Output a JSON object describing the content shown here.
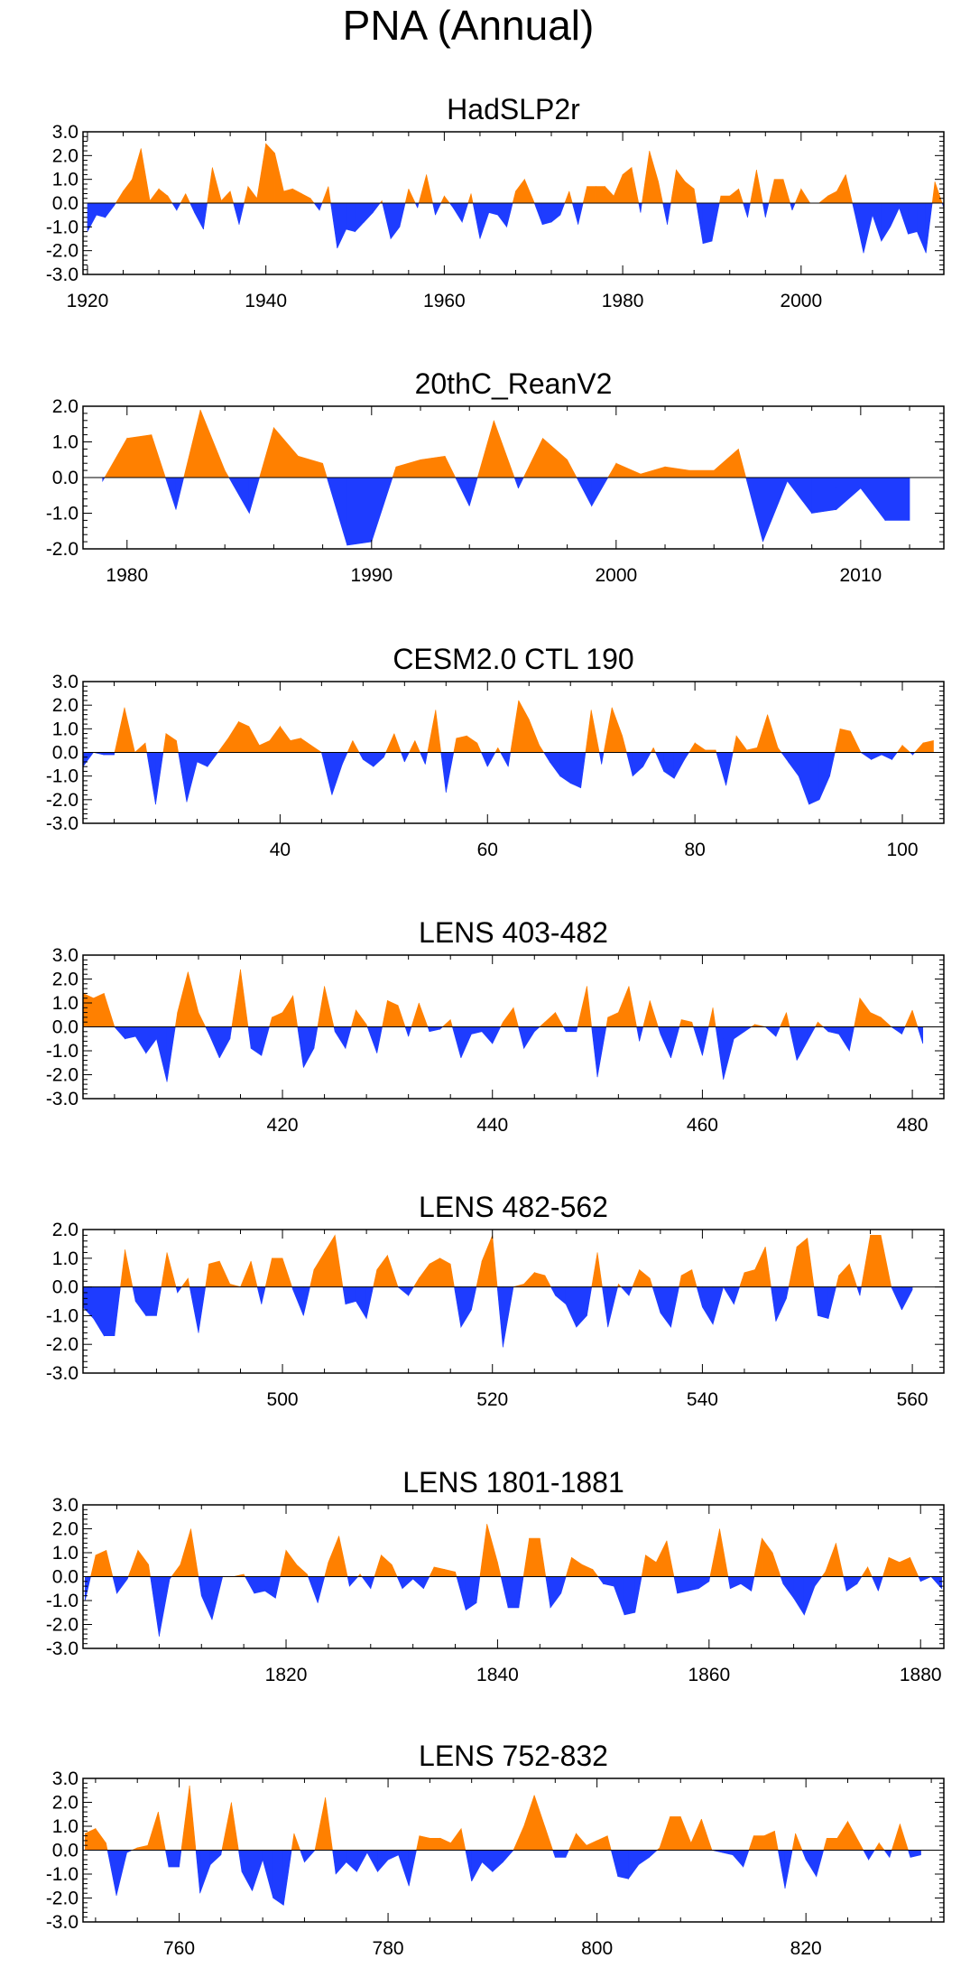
{
  "figure": {
    "title": "PNA (Annual)"
  },
  "colors": {
    "positive": "#ff8000",
    "negative": "#1e3cff",
    "axis": "#000000",
    "zero_line": "#000000"
  },
  "chart_data": [
    {
      "type": "area",
      "title": "HadSLP2r",
      "xlim": [
        1919.5,
        2016
      ],
      "ylim": [
        -3.0,
        3.0
      ],
      "yticks": [
        3.0,
        2.0,
        1.0,
        0.0,
        -1.0,
        -2.0,
        -3.0
      ],
      "ytick_labels": [
        "3.0",
        "2.0",
        "1.0",
        "0.0",
        "-1.0",
        "-2.0",
        "-3.0"
      ],
      "xticks": [
        1920,
        1940,
        1960,
        1980,
        2000
      ],
      "x_start": 1920,
      "values": [
        -1.2,
        -0.5,
        -0.6,
        -0.1,
        0.5,
        1.0,
        2.3,
        0.1,
        0.6,
        0.3,
        -0.3,
        0.4,
        -0.4,
        -1.1,
        1.5,
        0.1,
        0.5,
        -0.9,
        0.7,
        0.2,
        2.5,
        2.1,
        0.5,
        0.6,
        0.4,
        0.2,
        -0.3,
        0.7,
        -1.9,
        -1.1,
        -1.2,
        -0.8,
        -0.4,
        0.1,
        -1.5,
        -1.0,
        0.6,
        -0.2,
        1.2,
        -0.5,
        0.3,
        -0.2,
        -0.8,
        0.4,
        -1.5,
        -0.4,
        -0.5,
        -1.0,
        0.5,
        1.0,
        0.1,
        -0.9,
        -0.8,
        -0.5,
        0.5,
        -0.9,
        0.7,
        0.7,
        0.7,
        0.3,
        1.2,
        1.5,
        -0.4,
        2.2,
        0.9,
        -0.9,
        1.4,
        0.9,
        0.6,
        -1.7,
        -1.6,
        0.3,
        0.3,
        0.6,
        -0.6,
        1.4,
        -0.6,
        1.0,
        1.0,
        -0.3,
        0.6,
        0.0,
        0.0,
        0.3,
        0.5,
        1.2,
        -0.4,
        -2.1,
        -0.5,
        -1.6,
        -1.0,
        -0.2,
        -1.3,
        -1.2,
        -2.1,
        0.9,
        -0.2
      ]
    },
    {
      "type": "area",
      "title": "20thC_ReanV2",
      "xlim": [
        1978.2,
        2013.4
      ],
      "ylim": [
        -2.0,
        2.0
      ],
      "yticks": [
        2.0,
        1.0,
        0.0,
        -1.0,
        -2.0
      ],
      "ytick_labels": [
        "2.0",
        "1.0",
        "0.0",
        "-1.0",
        "-2.0"
      ],
      "xticks": [
        1980,
        1990,
        2000,
        2010
      ],
      "x_start": 1979,
      "values": [
        -0.1,
        1.1,
        1.2,
        -0.9,
        1.9,
        0.2,
        -1.0,
        1.4,
        0.6,
        0.4,
        -1.9,
        -1.8,
        0.3,
        0.5,
        0.6,
        -0.8,
        1.6,
        -0.3,
        1.1,
        0.5,
        -0.8,
        0.4,
        0.1,
        0.3,
        0.2,
        0.2,
        0.8,
        -1.8,
        -0.1,
        -1.0,
        -0.9,
        -0.3,
        -1.2,
        -1.2
      ]
    },
    {
      "type": "area",
      "title": "CESM2.0 CTL 190",
      "xlim": [
        21,
        104
      ],
      "ylim": [
        -3.0,
        3.0
      ],
      "yticks": [
        3.0,
        2.0,
        1.0,
        0.0,
        -1.0,
        -2.0,
        -3.0
      ],
      "ytick_labels": [
        "3.0",
        "2.0",
        "1.0",
        "0.0",
        "-1.0",
        "-2.0",
        "-3.0"
      ],
      "xticks": [
        40,
        60,
        80,
        100
      ],
      "x_start": 21,
      "values": [
        -0.6,
        0.0,
        -0.1,
        -0.1,
        1.9,
        0.0,
        0.4,
        -2.2,
        0.8,
        0.5,
        -2.1,
        -0.4,
        -0.6,
        0.0,
        0.6,
        1.3,
        1.1,
        0.3,
        0.5,
        1.1,
        0.5,
        0.6,
        0.3,
        0.0,
        -1.8,
        -0.5,
        0.5,
        -0.3,
        -0.6,
        -0.2,
        0.8,
        -0.4,
        0.5,
        -0.5,
        1.8,
        -1.7,
        0.6,
        0.7,
        0.4,
        -0.6,
        0.2,
        -0.6,
        2.2,
        1.4,
        0.3,
        -0.4,
        -1.0,
        -1.3,
        -1.5,
        1.8,
        -0.5,
        1.9,
        0.7,
        -1.0,
        -0.6,
        0.2,
        -0.8,
        -1.1,
        -0.3,
        0.4,
        0.1,
        0.1,
        -1.4,
        0.7,
        0.1,
        0.2,
        1.6,
        0.2,
        -0.4,
        -1.0,
        -2.2,
        -2.0,
        -1.0,
        1.0,
        0.9,
        0.0,
        -0.3,
        -0.1,
        -0.3,
        0.3,
        -0.1,
        0.4,
        0.5
      ]
    },
    {
      "type": "area",
      "title": "LENS 403-482",
      "xlim": [
        401,
        483
      ],
      "ylim": [
        -3.0,
        3.0
      ],
      "yticks": [
        3.0,
        2.0,
        1.0,
        0.0,
        -1.0,
        -2.0,
        -3.0
      ],
      "ytick_labels": [
        "3.0",
        "2.0",
        "1.0",
        "0.0",
        "-1.0",
        "-2.0",
        "-3.0"
      ],
      "xticks": [
        420,
        440,
        460,
        480
      ],
      "x_start": 401,
      "values": [
        1.4,
        1.2,
        1.4,
        0.0,
        -0.5,
        -0.4,
        -1.1,
        -0.5,
        -2.3,
        0.6,
        2.3,
        0.6,
        -0.3,
        -1.3,
        -0.5,
        2.4,
        -0.9,
        -1.2,
        0.4,
        0.6,
        1.3,
        -1.7,
        -0.9,
        1.7,
        -0.2,
        -0.9,
        0.7,
        0.1,
        -1.1,
        1.1,
        0.9,
        -0.4,
        1.0,
        -0.2,
        -0.1,
        0.3,
        -1.3,
        -0.3,
        -0.2,
        -0.7,
        0.2,
        0.8,
        -0.9,
        -0.2,
        0.2,
        0.6,
        -0.2,
        -0.2,
        1.7,
        -2.1,
        0.4,
        0.6,
        1.7,
        -0.6,
        1.1,
        -0.3,
        -1.3,
        0.3,
        0.2,
        -1.2,
        0.8,
        -2.2,
        -0.5,
        -0.2,
        0.1,
        0.0,
        -0.4,
        0.6,
        -1.4,
        -0.6,
        0.2,
        -0.2,
        -0.3,
        -1.0,
        1.2,
        0.6,
        0.4,
        0.0,
        -0.3,
        0.7,
        -0.7
      ]
    },
    {
      "type": "area",
      "title": "LENS 482-562",
      "xlim": [
        481,
        563
      ],
      "ylim": [
        -3.0,
        2.0
      ],
      "yticks": [
        2.0,
        1.0,
        0.0,
        -1.0,
        -2.0,
        -3.0
      ],
      "ytick_labels": [
        "2.0",
        "1.0",
        "0.0",
        "-1.0",
        "-2.0",
        "-3.0"
      ],
      "xticks": [
        500,
        520,
        540,
        560
      ],
      "x_start": 481,
      "values": [
        -0.7,
        -1.1,
        -1.7,
        -1.7,
        1.3,
        -0.5,
        -1.0,
        -1.0,
        1.2,
        -0.2,
        0.3,
        -1.6,
        0.8,
        0.9,
        0.1,
        0.0,
        0.9,
        -0.6,
        1.0,
        1.0,
        -0.1,
        -1.0,
        0.6,
        1.2,
        1.8,
        -0.6,
        -0.5,
        -1.1,
        0.6,
        1.1,
        0.0,
        -0.3,
        0.3,
        0.8,
        1.0,
        0.8,
        -1.4,
        -0.8,
        0.9,
        1.8,
        -2.1,
        0.0,
        0.1,
        0.5,
        0.4,
        -0.3,
        -0.6,
        -1.4,
        -1.0,
        1.2,
        -1.4,
        0.1,
        -0.3,
        0.6,
        0.3,
        -0.9,
        -1.4,
        0.4,
        0.6,
        -0.7,
        -1.3,
        0.0,
        -0.6,
        0.5,
        0.6,
        1.4,
        -1.2,
        -0.4,
        1.4,
        1.7,
        -1.0,
        -1.1,
        0.4,
        0.8,
        -0.3,
        1.8,
        1.8,
        0.0,
        -0.8,
        -0.1
      ]
    },
    {
      "type": "area",
      "title": "LENS 1801-1881",
      "xlim": [
        1800.8,
        1882.2
      ],
      "ylim": [
        -3.0,
        3.0
      ],
      "yticks": [
        3.0,
        2.0,
        1.0,
        0.0,
        -1.0,
        -2.0,
        -3.0
      ],
      "ytick_labels": [
        "3.0",
        "2.0",
        "1.0",
        "0.0",
        "-1.0",
        "-2.0",
        "-3.0"
      ],
      "xticks": [
        1820,
        1840,
        1860,
        1880
      ],
      "x_start": 1801,
      "values": [
        -1.0,
        0.9,
        1.1,
        -0.7,
        -0.1,
        1.1,
        0.5,
        -2.5,
        -0.1,
        0.5,
        2.0,
        -0.8,
        -1.8,
        0.0,
        0.0,
        0.1,
        -0.7,
        -0.6,
        -0.9,
        1.1,
        0.5,
        0.1,
        -1.1,
        0.6,
        1.7,
        -0.4,
        0.1,
        -0.5,
        0.9,
        0.5,
        -0.5,
        -0.1,
        -0.5,
        0.4,
        0.3,
        0.2,
        -1.4,
        -1.1,
        2.2,
        0.6,
        -1.3,
        -1.3,
        1.6,
        1.6,
        -1.3,
        -0.7,
        0.8,
        0.5,
        0.3,
        -0.3,
        -0.4,
        -1.6,
        -1.5,
        0.9,
        0.6,
        1.5,
        -0.7,
        -0.6,
        -0.5,
        -0.2,
        2.0,
        -0.5,
        -0.3,
        -0.6,
        1.6,
        1.0,
        -0.3,
        -0.9,
        -1.6,
        -0.4,
        0.2,
        1.4,
        -0.6,
        -0.3,
        0.4,
        -0.6,
        0.8,
        0.6,
        0.8,
        -0.2,
        0.0,
        -0.5
      ]
    },
    {
      "type": "area",
      "title": "LENS 752-832",
      "xlim": [
        750.8,
        833.2
      ],
      "ylim": [
        -3.0,
        3.0
      ],
      "yticks": [
        3.0,
        2.0,
        1.0,
        0.0,
        -1.0,
        -2.0,
        -3.0
      ],
      "ytick_labels": [
        "3.0",
        "2.0",
        "1.0",
        "0.0",
        "-1.0",
        "-2.0",
        "-3.0"
      ],
      "xticks": [
        760,
        780,
        800,
        820
      ],
      "x_start": 751,
      "values": [
        0.7,
        0.9,
        0.3,
        -1.9,
        -0.1,
        0.1,
        0.2,
        1.6,
        -0.7,
        -0.7,
        2.7,
        -1.8,
        -0.6,
        -0.2,
        2.0,
        -0.9,
        -1.7,
        -0.4,
        -2.0,
        -2.3,
        0.7,
        -0.5,
        0.0,
        2.2,
        -1.0,
        -0.5,
        -0.9,
        -0.1,
        -0.9,
        -0.4,
        -0.2,
        -1.5,
        0.6,
        0.5,
        0.5,
        0.3,
        0.9,
        -1.3,
        -0.5,
        -0.9,
        -0.5,
        0.0,
        1.0,
        2.3,
        1.0,
        -0.3,
        -0.3,
        0.7,
        0.2,
        0.4,
        0.6,
        -1.1,
        -1.2,
        -0.6,
        -0.3,
        0.1,
        1.4,
        1.4,
        0.3,
        1.3,
        0.0,
        -0.1,
        -0.2,
        -0.7,
        0.6,
        0.6,
        0.8,
        -1.6,
        0.7,
        -0.4,
        -1.1,
        0.5,
        0.5,
        1.2,
        0.4,
        -0.4,
        0.3,
        -0.3,
        1.1,
        -0.3,
        -0.2
      ]
    }
  ]
}
